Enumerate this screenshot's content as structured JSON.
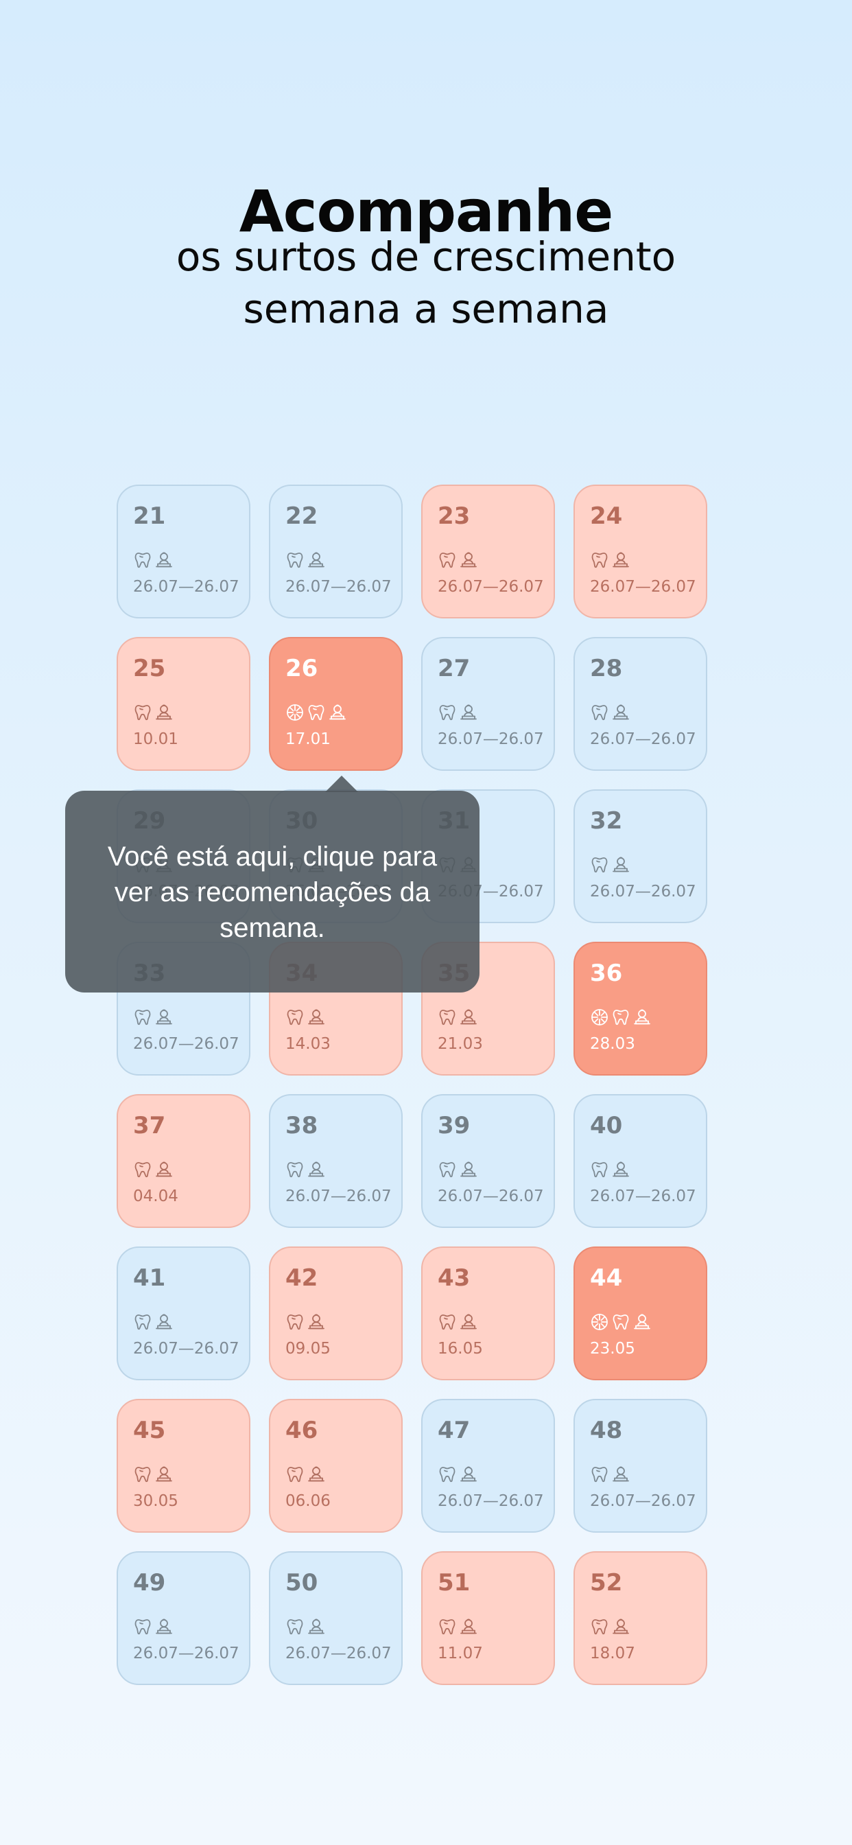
{
  "header": {
    "title": "Acompanhe",
    "subtitle_line1": "os surtos de crescimento",
    "subtitle_line2": "semana a semana"
  },
  "tooltip": {
    "text": "Você está aqui, clique para ver as recomendações da semana."
  },
  "colors": {
    "normal_card": "#d8ecfb",
    "peak_card": "#ffd2c8",
    "current_card": "#f99d85",
    "tooltip_bg": "#4e565c"
  },
  "weeks": [
    {
      "week": "21",
      "dates": "26.07—26.07",
      "state": "normal",
      "icons": [
        "tooth-icon",
        "baby-icon"
      ]
    },
    {
      "week": "22",
      "dates": "26.07—26.07",
      "state": "normal",
      "icons": [
        "tooth-icon",
        "baby-icon"
      ]
    },
    {
      "week": "23",
      "dates": "26.07—26.07",
      "state": "peak",
      "icons": [
        "tooth-icon",
        "baby-icon"
      ]
    },
    {
      "week": "24",
      "dates": "26.07—26.07",
      "state": "peak",
      "icons": [
        "tooth-icon",
        "baby-icon"
      ]
    },
    {
      "week": "25",
      "dates": "10.01",
      "state": "peak",
      "icons": [
        "tooth-icon",
        "baby-icon"
      ]
    },
    {
      "week": "26",
      "dates": "17.01",
      "state": "current",
      "icons": [
        "ball-icon",
        "tooth-icon",
        "baby-icon"
      ]
    },
    {
      "week": "27",
      "dates": "26.07—26.07",
      "state": "normal",
      "icons": [
        "tooth-icon",
        "baby-icon"
      ]
    },
    {
      "week": "28",
      "dates": "26.07—26.07",
      "state": "normal",
      "icons": [
        "tooth-icon",
        "baby-icon"
      ]
    },
    {
      "week": "29",
      "dates": "26.07—26.07",
      "state": "normal",
      "icons": [
        "tooth-icon",
        "baby-icon"
      ]
    },
    {
      "week": "30",
      "dates": "26.07—26.07",
      "state": "normal",
      "icons": [
        "tooth-icon",
        "baby-icon"
      ]
    },
    {
      "week": "31",
      "dates": "26.07—26.07",
      "state": "normal",
      "icons": [
        "tooth-icon",
        "baby-icon"
      ]
    },
    {
      "week": "32",
      "dates": "26.07—26.07",
      "state": "normal",
      "icons": [
        "tooth-icon",
        "baby-icon"
      ]
    },
    {
      "week": "33",
      "dates": "26.07—26.07",
      "state": "normal",
      "icons": [
        "tooth-icon",
        "baby-icon"
      ]
    },
    {
      "week": "34",
      "dates": "14.03",
      "state": "peak",
      "icons": [
        "tooth-icon",
        "baby-icon"
      ]
    },
    {
      "week": "35",
      "dates": "21.03",
      "state": "peak",
      "icons": [
        "tooth-icon",
        "baby-icon"
      ]
    },
    {
      "week": "36",
      "dates": "28.03",
      "state": "current",
      "icons": [
        "ball-icon",
        "tooth-icon",
        "baby-icon"
      ]
    },
    {
      "week": "37",
      "dates": "04.04",
      "state": "peak",
      "icons": [
        "tooth-icon",
        "baby-icon"
      ]
    },
    {
      "week": "38",
      "dates": "26.07—26.07",
      "state": "normal",
      "icons": [
        "tooth-icon",
        "baby-icon"
      ]
    },
    {
      "week": "39",
      "dates": "26.07—26.07",
      "state": "normal",
      "icons": [
        "tooth-icon",
        "baby-icon"
      ]
    },
    {
      "week": "40",
      "dates": "26.07—26.07",
      "state": "normal",
      "icons": [
        "tooth-icon",
        "baby-icon"
      ]
    },
    {
      "week": "41",
      "dates": "26.07—26.07",
      "state": "normal",
      "icons": [
        "tooth-icon",
        "baby-icon"
      ]
    },
    {
      "week": "42",
      "dates": "09.05",
      "state": "peak",
      "icons": [
        "tooth-icon",
        "baby-icon"
      ]
    },
    {
      "week": "43",
      "dates": "16.05",
      "state": "peak",
      "icons": [
        "tooth-icon",
        "baby-icon"
      ]
    },
    {
      "week": "44",
      "dates": "23.05",
      "state": "current",
      "icons": [
        "ball-icon",
        "tooth-icon",
        "baby-icon"
      ]
    },
    {
      "week": "45",
      "dates": "30.05",
      "state": "peak",
      "icons": [
        "tooth-icon",
        "baby-icon"
      ]
    },
    {
      "week": "46",
      "dates": "06.06",
      "state": "peak",
      "icons": [
        "tooth-icon",
        "baby-icon"
      ]
    },
    {
      "week": "47",
      "dates": "26.07—26.07",
      "state": "normal",
      "icons": [
        "tooth-icon",
        "baby-icon"
      ]
    },
    {
      "week": "48",
      "dates": "26.07—26.07",
      "state": "normal",
      "icons": [
        "tooth-icon",
        "baby-icon"
      ]
    },
    {
      "week": "49",
      "dates": "26.07—26.07",
      "state": "normal",
      "icons": [
        "tooth-icon",
        "baby-icon"
      ]
    },
    {
      "week": "50",
      "dates": "26.07—26.07",
      "state": "normal",
      "icons": [
        "tooth-icon",
        "baby-icon"
      ]
    },
    {
      "week": "51",
      "dates": "11.07",
      "state": "peak",
      "icons": [
        "tooth-icon",
        "baby-icon"
      ]
    },
    {
      "week": "52",
      "dates": "18.07",
      "state": "peak",
      "icons": [
        "tooth-icon",
        "baby-icon"
      ]
    }
  ]
}
